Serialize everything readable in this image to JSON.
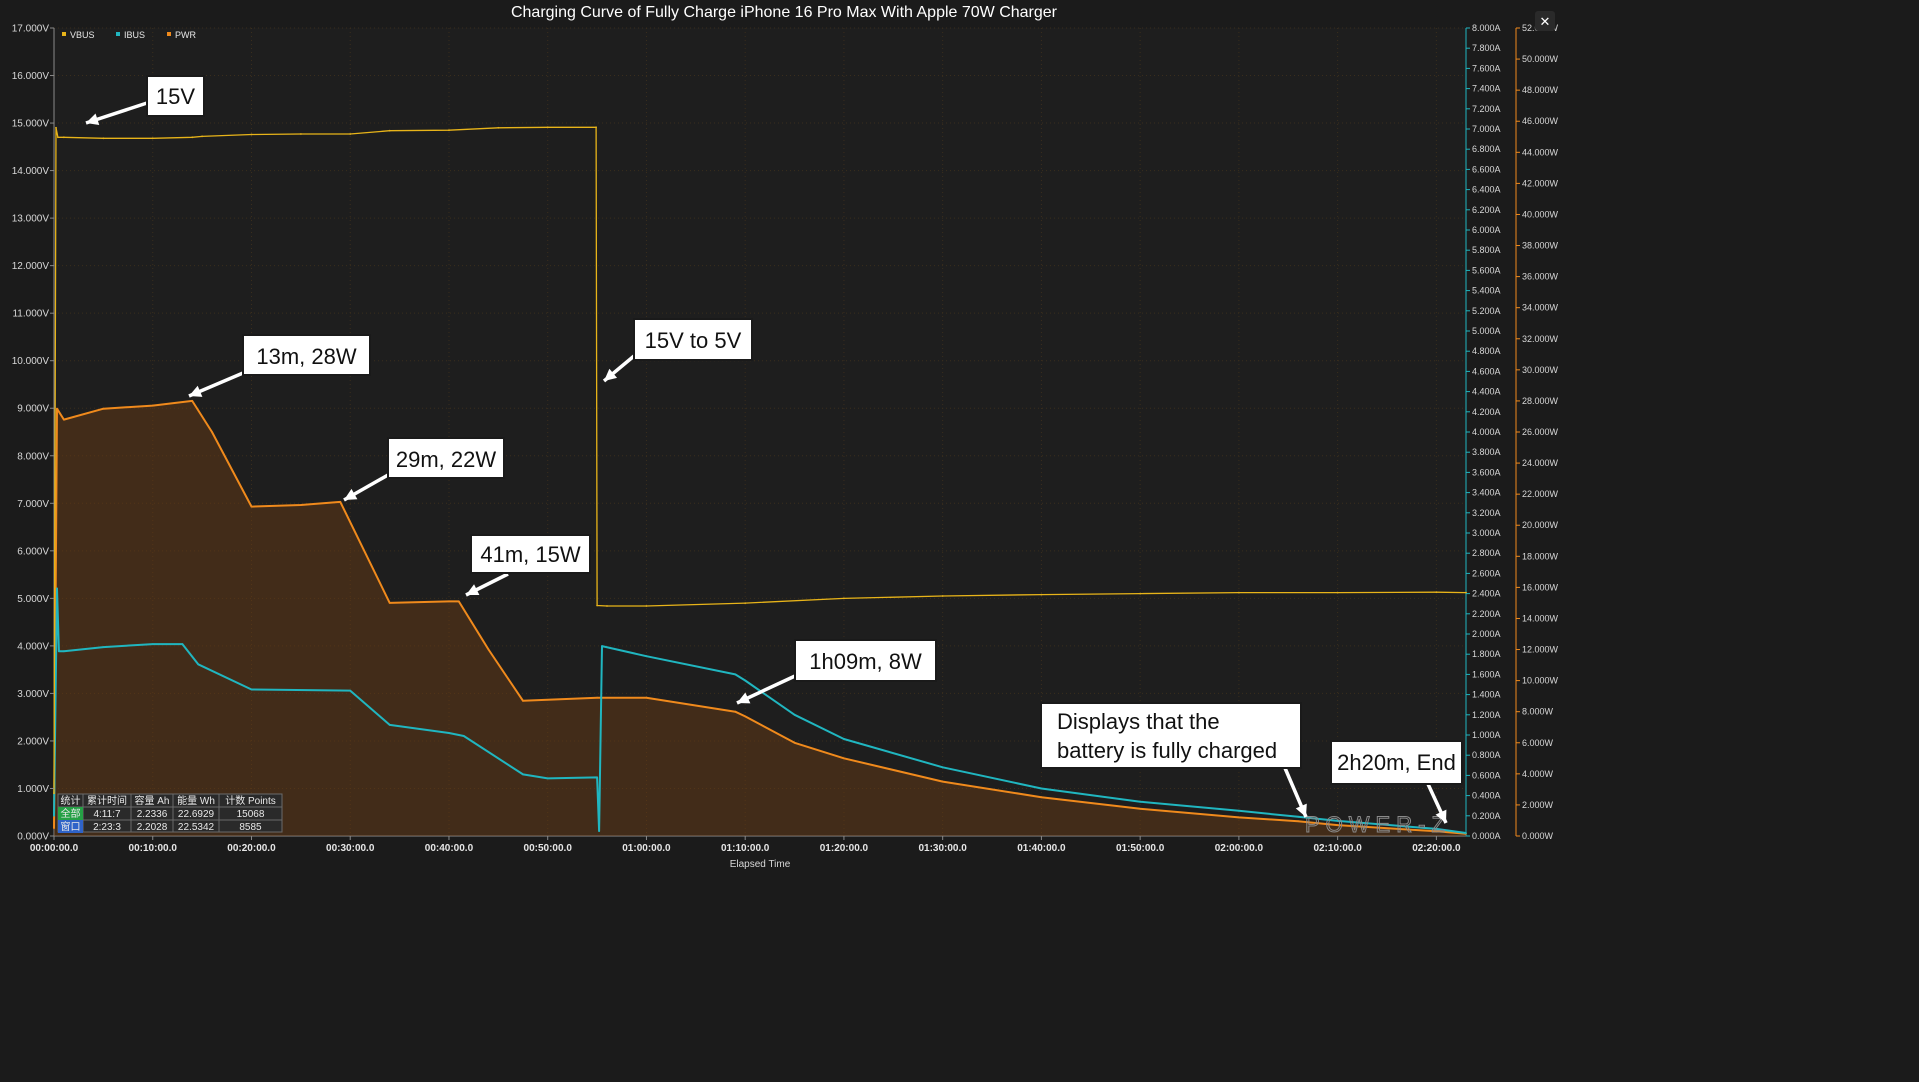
{
  "app": {
    "close_label": "✕"
  },
  "chart_data": {
    "type": "line",
    "title": "Charging Curve of Fully Charge iPhone 16 Pro Max With Apple 70W Charger",
    "xlabel": "Elapsed Time",
    "x_unit": "minutes",
    "xlim": [
      0,
      143
    ],
    "x_ticks": [
      "00:00:00.0",
      "00:10:00.0",
      "00:20:00.0",
      "00:30:00.0",
      "00:40:00.0",
      "00:50:00.0",
      "01:00:00.0",
      "01:10:00.0",
      "01:20:00.0",
      "01:30:00.0",
      "01:40:00.0",
      "01:50:00.0",
      "02:00:00.0",
      "02:10:00.0",
      "02:20:00.0"
    ],
    "y_left": {
      "name": "VBUS",
      "unit": "V",
      "ylim": [
        0,
        17
      ],
      "ticks": [
        "0.000V",
        "1.000V",
        "2.000V",
        "3.000V",
        "4.000V",
        "5.000V",
        "6.000V",
        "7.000V",
        "8.000V",
        "9.000V",
        "10.000V",
        "11.000V",
        "12.000V",
        "13.000V",
        "14.000V",
        "15.000V",
        "16.000V",
        "17.000V"
      ]
    },
    "y_mid": {
      "name": "IBUS",
      "unit": "A",
      "ylim": [
        0,
        8
      ],
      "ticks": [
        "0.000A",
        "0.200A",
        "0.400A",
        "0.600A",
        "0.800A",
        "1.000A",
        "1.200A",
        "1.400A",
        "1.600A",
        "1.800A",
        "2.000A",
        "2.200A",
        "2.400A",
        "2.600A",
        "2.800A",
        "3.000A",
        "3.200A",
        "3.400A",
        "3.600A",
        "3.800A",
        "4.000A",
        "4.200A",
        "4.400A",
        "4.600A",
        "4.800A",
        "5.000A",
        "5.200A",
        "5.400A",
        "5.600A",
        "5.800A",
        "6.000A",
        "6.200A",
        "6.400A",
        "6.600A",
        "6.800A",
        "7.000A",
        "7.200A",
        "7.400A",
        "7.600A",
        "7.800A",
        "8.000A"
      ]
    },
    "y_right": {
      "name": "PWR",
      "unit": "W",
      "ylim": [
        0,
        52
      ],
      "ticks": [
        "0.000W",
        "2.000W",
        "4.000W",
        "6.000W",
        "8.000W",
        "10.000W",
        "12.000W",
        "14.000W",
        "16.000W",
        "18.000W",
        "20.000W",
        "22.000W",
        "24.000W",
        "26.000W",
        "28.000W",
        "30.000W",
        "32.000W",
        "34.000W",
        "36.000W",
        "38.000W",
        "40.000W",
        "42.000W",
        "44.000W",
        "46.000W",
        "48.000W",
        "50.000W",
        "52.000W"
      ]
    },
    "legend": [
      "VBUS",
      "IBUS",
      "PWR"
    ],
    "legend_position": "top-left",
    "grid": true,
    "series": [
      {
        "name": "VBUS",
        "axis": "y_left",
        "color": "#e8b419",
        "x": [
          0,
          0.2,
          0.4,
          1,
          5,
          10,
          14,
          15,
          20,
          25,
          30,
          34,
          40,
          45,
          50,
          54.9,
          55,
          56,
          60,
          70,
          80,
          90,
          100,
          110,
          120,
          130,
          140,
          143
        ],
        "y": [
          0.9,
          14.9,
          14.7,
          14.7,
          14.68,
          14.68,
          14.7,
          14.72,
          14.76,
          14.77,
          14.77,
          14.84,
          14.85,
          14.9,
          14.91,
          14.91,
          4.85,
          4.84,
          4.84,
          4.9,
          5,
          5.05,
          5.08,
          5.1,
          5.12,
          5.12,
          5.13,
          5.12
        ]
      },
      {
        "name": "IBUS",
        "axis": "y_mid",
        "color": "#20b6c0",
        "x": [
          0,
          0.3,
          0.5,
          1,
          5,
          10,
          13,
          14.6,
          20,
          30,
          34,
          40,
          41.5,
          47.5,
          50,
          55,
          55.2,
          55.5,
          60,
          69,
          70,
          75,
          80,
          90,
          100,
          110,
          120,
          126,
          130,
          140,
          143
        ],
        "y": [
          0.2,
          2.45,
          1.83,
          1.83,
          1.87,
          1.9,
          1.9,
          1.7,
          1.45,
          1.44,
          1.1,
          1.02,
          0.99,
          0.61,
          0.57,
          0.58,
          0.05,
          1.88,
          1.78,
          1.6,
          1.54,
          1.2,
          0.96,
          0.68,
          0.47,
          0.34,
          0.25,
          0.19,
          0.15,
          0.07,
          0.03
        ]
      },
      {
        "name": "PWR",
        "axis": "y_right",
        "color": "#f08a1c",
        "fill": "rgba(120,66,18,0.40)",
        "x": [
          0,
          0.3,
          1,
          5,
          10,
          14,
          16,
          20,
          25,
          29,
          34,
          40,
          41,
          44,
          47.5,
          55,
          60,
          69,
          70,
          75,
          80,
          90,
          100,
          110,
          120,
          126,
          130,
          140,
          143
        ],
        "y": [
          0.5,
          27.5,
          26.8,
          27.5,
          27.7,
          28,
          26,
          21.2,
          21.3,
          21.5,
          15,
          15.1,
          15.1,
          12,
          8.7,
          8.9,
          8.9,
          8,
          7.7,
          6,
          5,
          3.5,
          2.5,
          1.75,
          1.2,
          0.95,
          0.7,
          0.3,
          0.15
        ]
      }
    ],
    "annotations": [
      {
        "label": "15V"
      },
      {
        "label": "13m, 28W"
      },
      {
        "label": "29m, 22W"
      },
      {
        "label": "41m, 15W"
      },
      {
        "label": "15V to 5V"
      },
      {
        "label": "1h09m, 8W"
      },
      {
        "label": "Displays that the",
        "label2": "battery is fully charged"
      },
      {
        "label": "2h20m, End"
      }
    ],
    "stats_table": {
      "headers": [
        "统计",
        "累计时间",
        "容量 Ah",
        "能量 Wh",
        "计数 Points"
      ],
      "rows": [
        {
          "name": "全部",
          "time": "4:11:7",
          "ah": "2.2336",
          "wh": "22.6929",
          "points": "15068",
          "color": "#25a045"
        },
        {
          "name": "窗口",
          "time": "2:23:3",
          "ah": "2.2028",
          "wh": "22.5342",
          "points": "8585",
          "color": "#2f63c8"
        }
      ]
    },
    "watermark": "POWER-Z"
  }
}
